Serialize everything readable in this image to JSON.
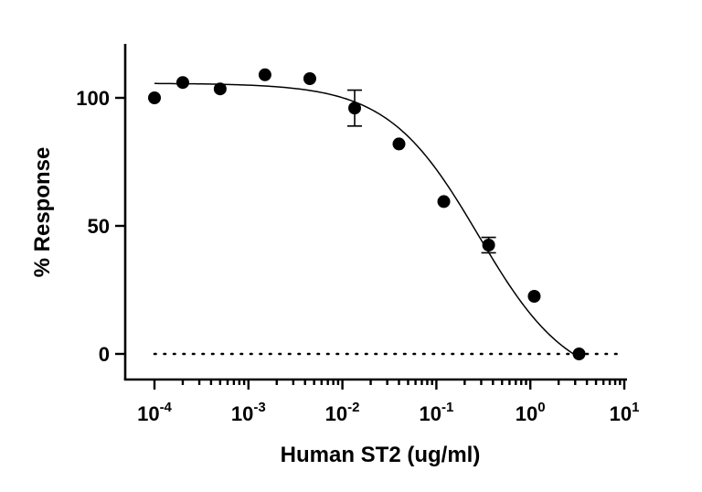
{
  "chart_data": {
    "type": "scatter",
    "xlabel": "Human ST2 (ug/ml)",
    "ylabel": "% Response",
    "x_scale": "log10",
    "xlim": [
      0.0001,
      10
    ],
    "ylim": [
      -10,
      121
    ],
    "x_ticks": [
      {
        "value": 0.0001,
        "base": "10",
        "exp": "-4"
      },
      {
        "value": 0.001,
        "base": "10",
        "exp": "-3"
      },
      {
        "value": 0.01,
        "base": "10",
        "exp": "-2"
      },
      {
        "value": 0.1,
        "base": "10",
        "exp": "-1"
      },
      {
        "value": 1,
        "base": "10",
        "exp": "0"
      },
      {
        "value": 10,
        "base": "10",
        "exp": "1"
      }
    ],
    "y_ticks": [
      0,
      50,
      100
    ],
    "points": [
      {
        "x": 0.0001,
        "y": 100
      },
      {
        "x": 0.0002,
        "y": 106
      },
      {
        "x": 0.0005,
        "y": 103.5
      },
      {
        "x": 0.0015,
        "y": 109
      },
      {
        "x": 0.0045,
        "y": 107.5
      },
      {
        "x": 0.0135,
        "y": 96,
        "err_low": 89,
        "err_high": 103
      },
      {
        "x": 0.04,
        "y": 82
      },
      {
        "x": 0.12,
        "y": 59.5
      },
      {
        "x": 0.36,
        "y": 42.5,
        "err_low": 39.5,
        "err_high": 45.5
      },
      {
        "x": 1.1,
        "y": 22.5
      },
      {
        "x": 3.3,
        "y": 0
      }
    ],
    "fit_curve": {
      "model": "four-parameter logistic",
      "top": 105.7,
      "bottom": -13,
      "ic50": 0.28,
      "hill_slope": 0.9,
      "x_range": [
        0.0001,
        3.3
      ]
    },
    "reference_line": {
      "y": 0,
      "style": "dotted",
      "x_range": [
        0.0001,
        10
      ]
    },
    "grid": false,
    "legend": "none"
  }
}
